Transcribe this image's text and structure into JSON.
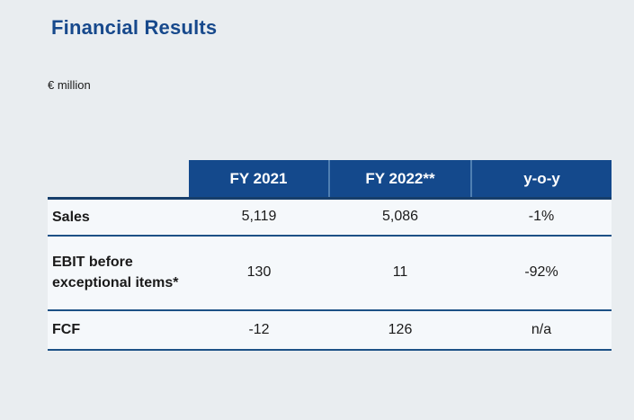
{
  "page": {
    "title": "Financial Results",
    "unit_label": "€ million"
  },
  "colors": {
    "background": "#e9edf0",
    "title_text": "#17498c",
    "header_bg": "#14498c",
    "header_text": "#ffffff",
    "header_divider": "#4f7fb2",
    "row_bg": "#f5f8fb",
    "separator_line": "#1d5186",
    "header_underline": "#163e6b",
    "body_text": "#1a1a1a"
  },
  "chart_data": {
    "type": "table",
    "title": "Financial Results",
    "unit": "€ million",
    "columns": [
      "",
      "FY 2021",
      "FY 2022**",
      "y-o-y"
    ],
    "rows": [
      {
        "label": "Sales",
        "values": [
          "5,119",
          "5,086",
          "-1%"
        ]
      },
      {
        "label": "EBIT before exceptional items*",
        "values": [
          "130",
          "11",
          "-92%"
        ]
      },
      {
        "label": "FCF",
        "values": [
          "-12",
          "126",
          "n/a"
        ]
      }
    ],
    "layout": {
      "header_style": "dark-blue band over value columns only",
      "value_alignment": "center",
      "label_alignment": "left",
      "gridlines": "horizontal only"
    }
  }
}
